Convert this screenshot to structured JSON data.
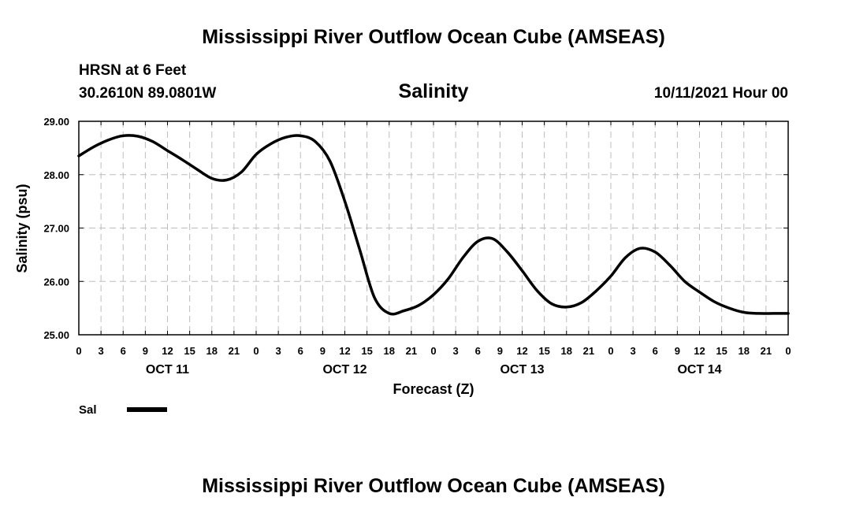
{
  "header": {
    "title": "Mississippi River Outflow Ocean Cube (AMSEAS)",
    "station": "HRSN at 6 Feet",
    "location": "30.2610N  89.0801W",
    "variable": "Salinity",
    "datetime": "10/11/2021 Hour 00"
  },
  "footer": {
    "title": "Mississippi River Outflow Ocean Cube (AMSEAS)"
  },
  "chart_data": {
    "type": "line",
    "title": "Salinity",
    "xlabel": "Forecast (Z)",
    "ylabel": "Salinity (psu)",
    "xlim": [
      0,
      96
    ],
    "ylim": [
      25.0,
      29.0
    ],
    "y_ticks": [
      "25.00",
      "26.00",
      "27.00",
      "28.00",
      "29.00"
    ],
    "x_tick_labels": [
      "0",
      "3",
      "6",
      "9",
      "12",
      "15",
      "18",
      "21",
      "0",
      "3",
      "6",
      "9",
      "12",
      "15",
      "18",
      "21",
      "0",
      "3",
      "6",
      "9",
      "12",
      "15",
      "18",
      "21",
      "0",
      "3",
      "6",
      "9",
      "12",
      "15",
      "18",
      "21",
      "0"
    ],
    "day_labels": [
      {
        "label": "OCT 11",
        "hour": 12
      },
      {
        "label": "OCT 12",
        "hour": 36
      },
      {
        "label": "OCT 13",
        "hour": 60
      },
      {
        "label": "OCT 14",
        "hour": 84
      }
    ],
    "grid": true,
    "legend": "bottom-left",
    "series": [
      {
        "name": "Sal",
        "color": "#000000",
        "x": [
          0,
          2,
          4,
          6,
          8,
          10,
          12,
          14,
          16,
          18,
          20,
          22,
          24,
          26,
          28,
          30,
          32,
          34,
          36,
          38,
          40,
          42,
          44,
          46,
          48,
          50,
          52,
          54,
          56,
          58,
          60,
          62,
          64,
          66,
          68,
          70,
          72,
          74,
          76,
          78,
          80,
          82,
          84,
          86,
          88,
          90,
          92,
          94,
          96
        ],
        "y": [
          28.35,
          28.52,
          28.65,
          28.73,
          28.72,
          28.62,
          28.45,
          28.28,
          28.1,
          27.93,
          27.9,
          28.05,
          28.38,
          28.58,
          28.7,
          28.73,
          28.62,
          28.25,
          27.5,
          26.6,
          25.7,
          25.4,
          25.45,
          25.55,
          25.75,
          26.05,
          26.45,
          26.75,
          26.8,
          26.55,
          26.2,
          25.83,
          25.58,
          25.52,
          25.6,
          25.82,
          26.1,
          26.45,
          26.62,
          26.55,
          26.3,
          26.0,
          25.8,
          25.62,
          25.5,
          25.42,
          25.4,
          25.4,
          25.4
        ]
      }
    ]
  }
}
